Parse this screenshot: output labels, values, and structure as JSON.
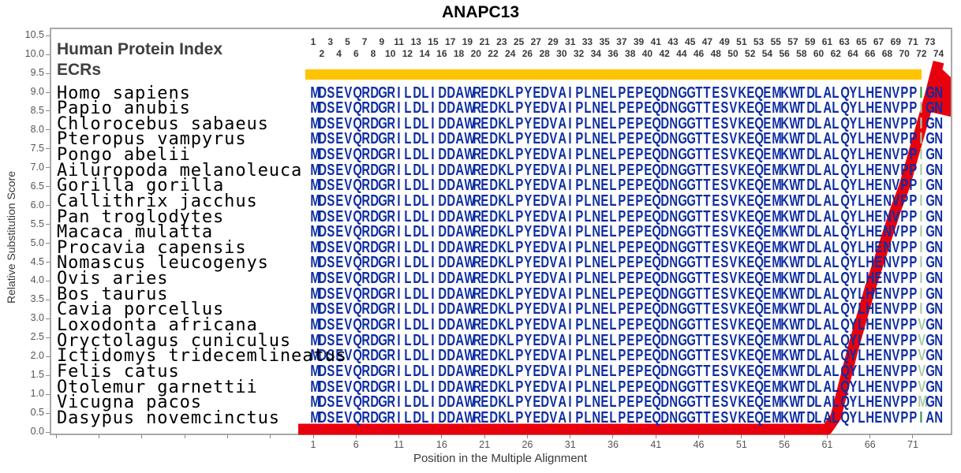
{
  "title": "ANAPC13",
  "chart_data": {
    "type": "line",
    "title": "ANAPC13",
    "xlabel": "Position in the Multiple Alignment",
    "ylabel": "Relative Substitution Score",
    "ylim": [
      0,
      10.5
    ],
    "yticks": [
      "10.5",
      "10.0",
      "9.5",
      "9.0",
      "8.5",
      "8.0",
      "7.5",
      "7.0",
      "6.5",
      "6.0",
      "5.5",
      "5.0",
      "4.5",
      "4.0",
      "3.5",
      "3.0",
      "2.5",
      "2.0",
      "1.5",
      "1.0",
      "0.5",
      "0.0"
    ],
    "xticks": [
      1,
      6,
      11,
      16,
      21,
      26,
      31,
      36,
      41,
      46,
      51,
      56,
      61,
      66,
      71
    ],
    "series": [
      {
        "name": "relative-substitution-score",
        "color": "#e8000d",
        "points": [
          [
            1,
            0
          ],
          [
            10,
            0
          ],
          [
            20,
            0
          ],
          [
            30,
            0
          ],
          [
            40,
            0
          ],
          [
            50,
            0
          ],
          [
            61,
            0
          ],
          [
            62,
            0.4
          ],
          [
            63,
            1.3
          ],
          [
            64,
            2.2
          ],
          [
            65,
            3.0
          ],
          [
            66,
            3.8
          ],
          [
            67,
            4.5
          ],
          [
            68,
            5.2
          ],
          [
            69,
            5.9
          ],
          [
            70,
            6.5
          ],
          [
            71,
            7.3
          ],
          [
            72,
            8.1
          ],
          [
            73,
            8.9
          ],
          [
            74,
            9.8
          ]
        ]
      }
    ],
    "tracks": {
      "human_protein_index": {
        "label": "Human Protein Index",
        "position_numbers_first": 1,
        "position_numbers_last": 74
      },
      "ecrs": {
        "label": "ECRs",
        "region_start": 1,
        "region_end": 72
      }
    },
    "alignment": {
      "columns": 74,
      "highlight_column": 72,
      "rows": [
        {
          "species": "Homo sapiens",
          "seq": "MDSEVQRDGRILDLIDDAWREDKLPYEDVAIPLNELPEPEQDNGGTTESVKEQEMKWTDLALQYLHENVPPIGN",
          "shade": "dark"
        },
        {
          "species": "Papio anubis",
          "seq": "MDSEVQRDGRILDLIDDAWREDKLPYEDVAIPLNELPEPEQDNGGTTESVKEQEMKWTDLALQYLHENVPPIGN",
          "shade": "pale"
        },
        {
          "species": "Chlorocebus sabaeus",
          "seq": "MDSEVQRDGRILDLIDDAWREDKLPYEDVAIPLNELPEPEQDNGGTTESVKEQEMKWTDLALQYLHENVPPIGN",
          "shade": "pale"
        },
        {
          "species": "Pteropus vampyrus",
          "seq": "MDSEVQRDGRILDLIDDAWREDKLPYEDVAIPLNELPEPEQDNGGTTESVKEQEMKWTDLALQYLHENVPPIGN",
          "shade": "pale"
        },
        {
          "species": "Pongo abelii",
          "seq": "MDSEVQRDGRILDLIDDAWREDKLPYEDVAIPLNELPEPEQDNGGTTESVKEQEMKWTDLALQYLHENVPPIGN",
          "shade": "pale"
        },
        {
          "species": "Ailuropoda melanoleuca",
          "seq": "MDSEVQRDGRILDLIDDAWREDKLPYEDVAIPLNELPEPEQDNGGTTESVKEQEMKWTDLALQYLHENVPPIGN",
          "shade": "pale"
        },
        {
          "species": "Gorilla gorilla",
          "seq": "MDSEVQRDGRILDLIDDAWREDKLPYEDVAIPLNELPEPEQDNGGTTESVKEQEMKWTDLALQYLHENVPPIGN",
          "shade": "pale"
        },
        {
          "species": "Callithrix jacchus",
          "seq": "MDSEVQRDGRILDLIDDAWREDKLPYEDVAIPLNELPEPEQDNGGTTESVKEQEMKWTDLALQYLHENVPPIGN",
          "shade": "pale"
        },
        {
          "species": "Pan troglodytes",
          "seq": "MDSEVQRDGRILDLIDDAWREDKLPYEDVAIPLNELPEPEQDNGGTTESVKEQEMKWTDLALQYLHENVPPIGN",
          "shade": "pale"
        },
        {
          "species": "Macaca mulatta",
          "seq": "MDSEVQRDGRILDLIDDAWREDKLPYEDVAIPLNELPEPEQDNGGTTESVKEQEMKWTDLALQYLHENVPPIGN",
          "shade": "pale"
        },
        {
          "species": "Procavia capensis",
          "seq": "MDSEVQRDGRILDLIDDAWREDKLPYEDVAIPLNELPEPEQDNGGTTESVKEQEMKWTDLALQYLHENVPPIGN",
          "shade": "pale"
        },
        {
          "species": "Nomascus leucogenys",
          "seq": "MDSEVQRDGRILDLIDDAWREDKLPYEDVAIPLNELPEPEQDNGGTTESVKEQEMKWTDLALQYLHENVPPIGN",
          "shade": "pale"
        },
        {
          "species": "Ovis aries",
          "seq": "MDSEVQRDGRILDLIDDAWREDKLPYEDVAIPLNELPEPEQDNGGTTESVKEQEMKWTDLALQYLHENVPPIGN",
          "shade": "pale"
        },
        {
          "species": "Bos taurus",
          "seq": "MDSEVQRDGRILDLIDDAWREDKLPYEDVAIPLNELPEPEQDNGGTTESVKEQEMKWTDLALQYLHENVPPIGN",
          "shade": "pale"
        },
        {
          "species": "Cavia porcellus",
          "seq": "MDSEVQRDGRILDLIDDAWREDKLPYEDVAIPLNELPEPEQDNGGTTESVKEQEMKWTDLALQYLHENVPPIGN",
          "shade": "pale"
        },
        {
          "species": "Loxodonta africana",
          "seq": "MDSEVQRDGRILDLIDDAWREDKLPYEDVAIPLNELPEPEQDNGGTTESVKEQEMKWTDLALQYLHENVPPVGN",
          "shade": "pale"
        },
        {
          "species": "Oryctolagus cuniculus",
          "seq": "MDSEVQRDGRILDLIDDAWREDKLPYEDVAIPLNELPEPEQDNGGTTESVKEQEMKWTDLALQYLHENVPPVGN",
          "shade": "pale"
        },
        {
          "species": "Ictidomys tridecemlineatus",
          "seq": "MDSEVQRDGRILDLIDDAWREDKLPYEDVAIPLNELPEPEQDNGGTTESVKEQEMKWTDLALQYLHENVPPVGN",
          "shade": "pale"
        },
        {
          "species": "Felis catus",
          "seq": "MDSEVQRDGRILDLIDDAWREDKLPYEDVAIPLNELPEPEQDNGGTTESVKEQEMKWTDLALQYLHENVPPVGN",
          "shade": "pale"
        },
        {
          "species": "Otolemur garnettii",
          "seq": "MDSEVQRDGRILDLIDDAWREDKLPYEDVAIPLNELPEPEQDNGGTTESVKEQEMKWTDLALQYLHENVPPVGN",
          "shade": "pale"
        },
        {
          "species": "Vicugna pacos",
          "seq": "MDSEVQRDGRILDLIDDAWREDKLPYEDVAIPLNELPEPEQDNGGTTESVKEQEMKWTDLALQYLHENVPPMGN",
          "shade": "pale"
        },
        {
          "species": "Dasypus novemcinctus",
          "seq": "MDSEVQRDGRILDLIDDAWREDKLPYEDVAIPLNELPEPEQDNGGTTESVKEQEMKWTDLALQYLHENVPPIAN",
          "shade": "dark"
        }
      ]
    }
  },
  "colors": {
    "letter_blue": "#0d2da1",
    "highlight_pale_green": "#a9caa2",
    "highlight_dark_green": "#2f9a4d",
    "line_red": "#e8000d",
    "ecr_yellow": "#ffc400",
    "axis_text": "#3a3a3a",
    "tick_text": "#555555",
    "header_text": "#3f3f3f"
  }
}
